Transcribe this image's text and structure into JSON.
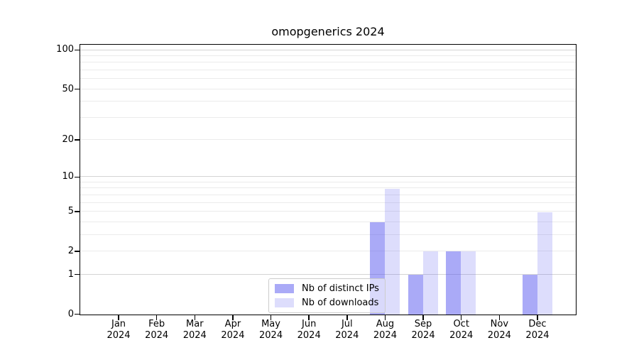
{
  "chart_data": {
    "type": "bar",
    "title": "omopgenerics 2024",
    "categories": [
      "Jan 2024",
      "Feb 2024",
      "Mar 2024",
      "Apr 2024",
      "May 2024",
      "Jun 2024",
      "Jul 2024",
      "Aug 2024",
      "Sep 2024",
      "Oct 2024",
      "Nov 2024",
      "Dec 2024"
    ],
    "series": [
      {
        "name": "Nb of distinct IPs",
        "color": "rgba(85,85,240,0.5)",
        "values": [
          0,
          0,
          0,
          0,
          0,
          0,
          0,
          4,
          1,
          2,
          0,
          1
        ]
      },
      {
        "name": "Nb of downloads",
        "color": "rgba(85,85,240,0.2)",
        "values": [
          0,
          0,
          0,
          0,
          0,
          0,
          0,
          8,
          2,
          2,
          0,
          5
        ]
      }
    ],
    "xlabel": "",
    "ylabel": "",
    "yscale": "log1p",
    "ylim": [
      0,
      110
    ],
    "yticks": [
      100,
      50,
      20,
      10,
      5,
      2,
      1,
      0
    ],
    "grid": "horizontal",
    "grid_minor_values": [
      2,
      3,
      4,
      5,
      6,
      7,
      8,
      9,
      20,
      30,
      40,
      50,
      60,
      70,
      80,
      90
    ],
    "grid_major_values": [
      1,
      10,
      100
    ],
    "legend_position": "inside bottom-center",
    "colors": {
      "bar_distinct_ips_rendered": "#aaaaf7",
      "bar_downloads_rendered": "#dcdcf8",
      "grid_minor": "#ebebeb",
      "grid_major": "#d4d4d4",
      "axis": "#000000",
      "legend_border": "#cccccc"
    }
  }
}
